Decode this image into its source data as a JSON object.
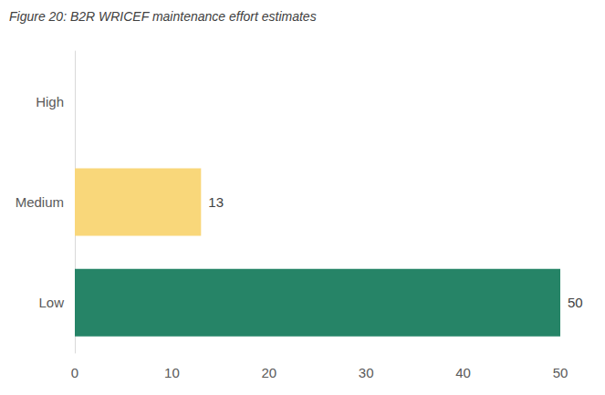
{
  "chart_data": {
    "type": "bar",
    "title": "Figure 20: B2R WRICEF maintenance effort estimates",
    "orientation": "horizontal",
    "categories": [
      "High",
      "Medium",
      "Low"
    ],
    "values": [
      null,
      13,
      50
    ],
    "colors": [
      null,
      "#f9d77a",
      "#268467"
    ],
    "xlim": [
      0,
      50
    ],
    "xticks": [
      0,
      10,
      20,
      30,
      40,
      50
    ],
    "grid": false,
    "data_labels": true
  }
}
